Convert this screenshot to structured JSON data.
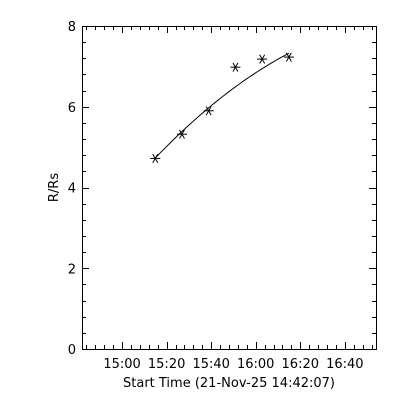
{
  "chart_data": {
    "type": "scatter",
    "title": "",
    "xlabel": "Start Time (21-Nov-25 14:42:07)",
    "ylabel": "R/Rs",
    "x_tick_labels": [
      "15:00",
      "15:20",
      "15:40",
      "16:00",
      "16:20",
      "16:40"
    ],
    "x_tick_minutes": [
      18,
      38,
      58,
      78,
      98,
      118
    ],
    "y_tick_labels": [
      "0",
      "2",
      "4",
      "6",
      "8"
    ],
    "y_tick_values": [
      0,
      2,
      4,
      6,
      8
    ],
    "xlim": [
      0,
      132
    ],
    "ylim": [
      0,
      8
    ],
    "grid": false,
    "points": [
      {
        "t": "15:15",
        "r": 4.72
      },
      {
        "t": "15:27",
        "r": 5.32
      },
      {
        "t": "15:39",
        "r": 5.9
      },
      {
        "t": "15:51",
        "r": 6.98
      },
      {
        "t": "16:03",
        "r": 7.18
      },
      {
        "t": "16:15",
        "r": 7.23
      }
    ],
    "fit": {
      "type": "quadratic",
      "t": [
        "15:15",
        "15:27",
        "15:39",
        "15:51",
        "16:03",
        "16:15"
      ],
      "r": [
        4.72,
        5.4,
        5.98,
        6.48,
        6.94,
        7.33
      ]
    },
    "colors": {
      "axis": "#000000",
      "marker": "#000000",
      "line": "#000000",
      "background": "#ffffff"
    }
  }
}
